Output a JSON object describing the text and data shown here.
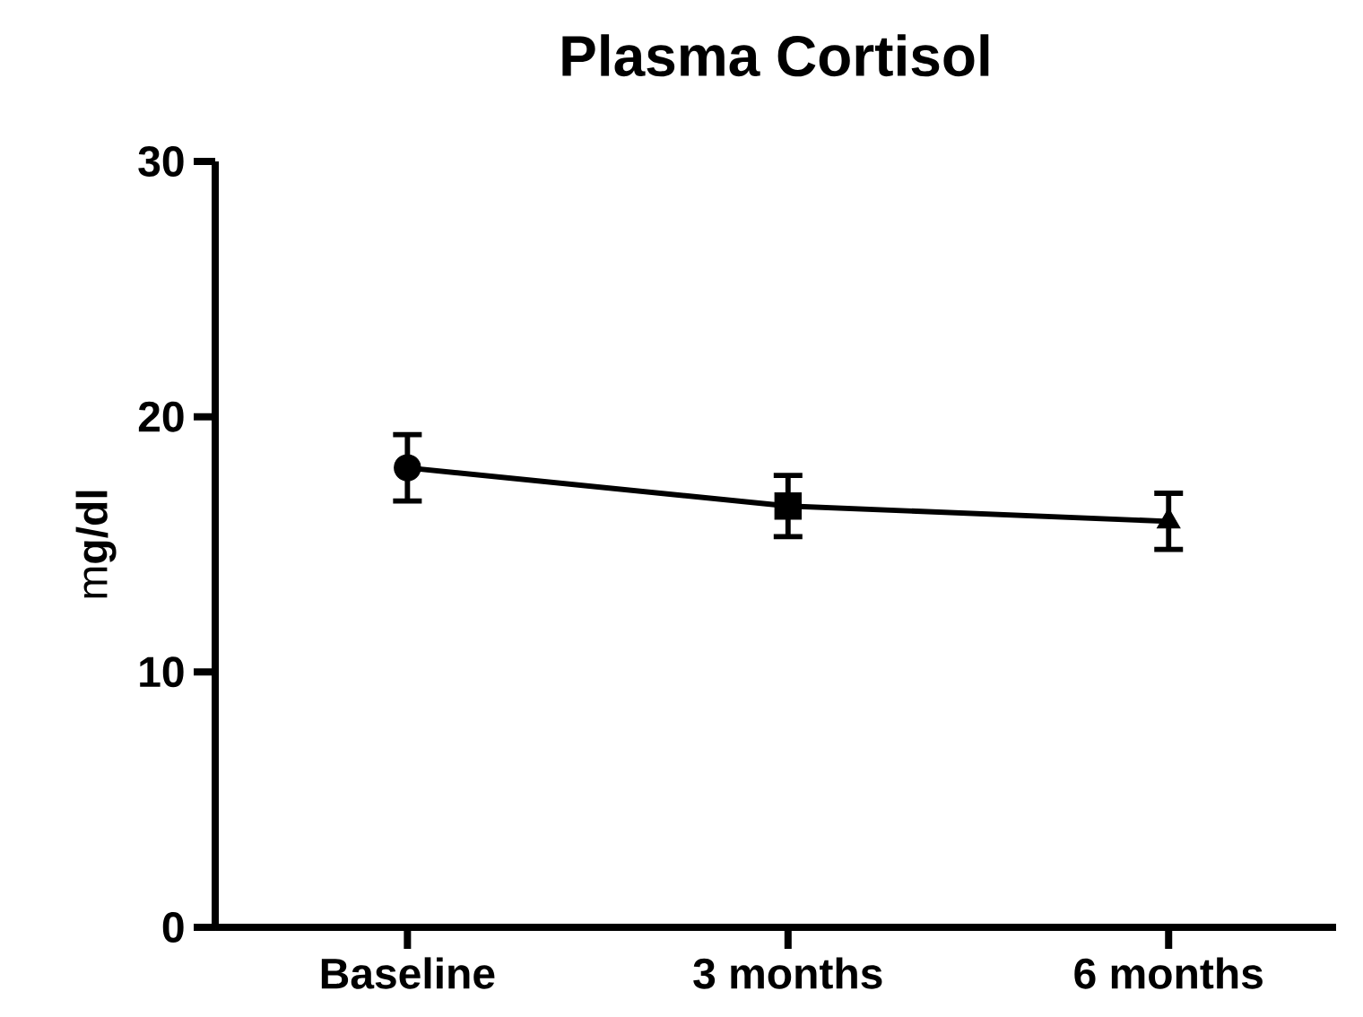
{
  "chart_data": {
    "type": "line",
    "title": "Plasma Cortisol",
    "ylabel": "m**g/dl**",
    "categories": [
      "Baseline",
      "3 months",
      "6 months"
    ],
    "ylim": [
      0,
      30
    ],
    "yticks": [
      0,
      10,
      20,
      30
    ],
    "series": [
      {
        "color": "#000000",
        "marker": "none",
        "line_style": "solid",
        "values": [
          18,
          16.5,
          15.9
        ],
        "errors": [
          [
            16.7,
            19.3
          ],
          [
            15.3,
            17.7
          ],
          [
            14.8,
            17.0
          ]
        ]
      },
      {
        "type": "scatter",
        "color": "#000000",
        "marker": "circle",
        "values": [
          18,
          null,
          null
        ]
      },
      {
        "type": "scatter",
        "color": "#000000",
        "marker": "square",
        "values": [
          null,
          16.5,
          null
        ]
      },
      {
        "type": "scatter",
        "color": "#000000",
        "marker": "triangle",
        "values": [
          null,
          null,
          15.9
        ]
      }
    ]
  }
}
